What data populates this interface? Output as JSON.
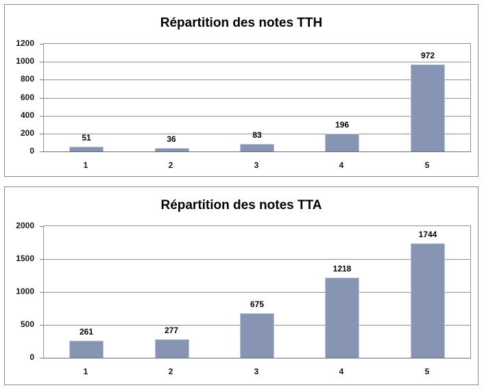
{
  "chart_data": [
    {
      "type": "bar",
      "title": "Répartition des notes TTH",
      "categories": [
        "1",
        "2",
        "3",
        "4",
        "5"
      ],
      "values": [
        51,
        36,
        83,
        196,
        972
      ],
      "xlabel": "",
      "ylabel": "",
      "ylim": [
        0,
        1200
      ],
      "yticks": [
        0,
        200,
        400,
        600,
        800,
        1000,
        1200
      ],
      "grid": true,
      "legend": "none",
      "data_labels": true,
      "bar_color": "#8794B4"
    },
    {
      "type": "bar",
      "title": "Répartition des notes TTA",
      "categories": [
        "1",
        "2",
        "3",
        "4",
        "5"
      ],
      "values": [
        261,
        277,
        675,
        1218,
        1744
      ],
      "xlabel": "",
      "ylabel": "",
      "ylim": [
        0,
        2000
      ],
      "yticks": [
        0,
        500,
        1000,
        1500,
        2000
      ],
      "grid": true,
      "legend": "none",
      "data_labels": true,
      "bar_color": "#8794B4"
    }
  ],
  "colors": {
    "bar_fill": "#8794B4",
    "bar_edge": "#BCC3D4",
    "frame_border": "#898989",
    "gridline": "#909090",
    "axis_line": "#6F6F6F",
    "text": "#000000"
  }
}
